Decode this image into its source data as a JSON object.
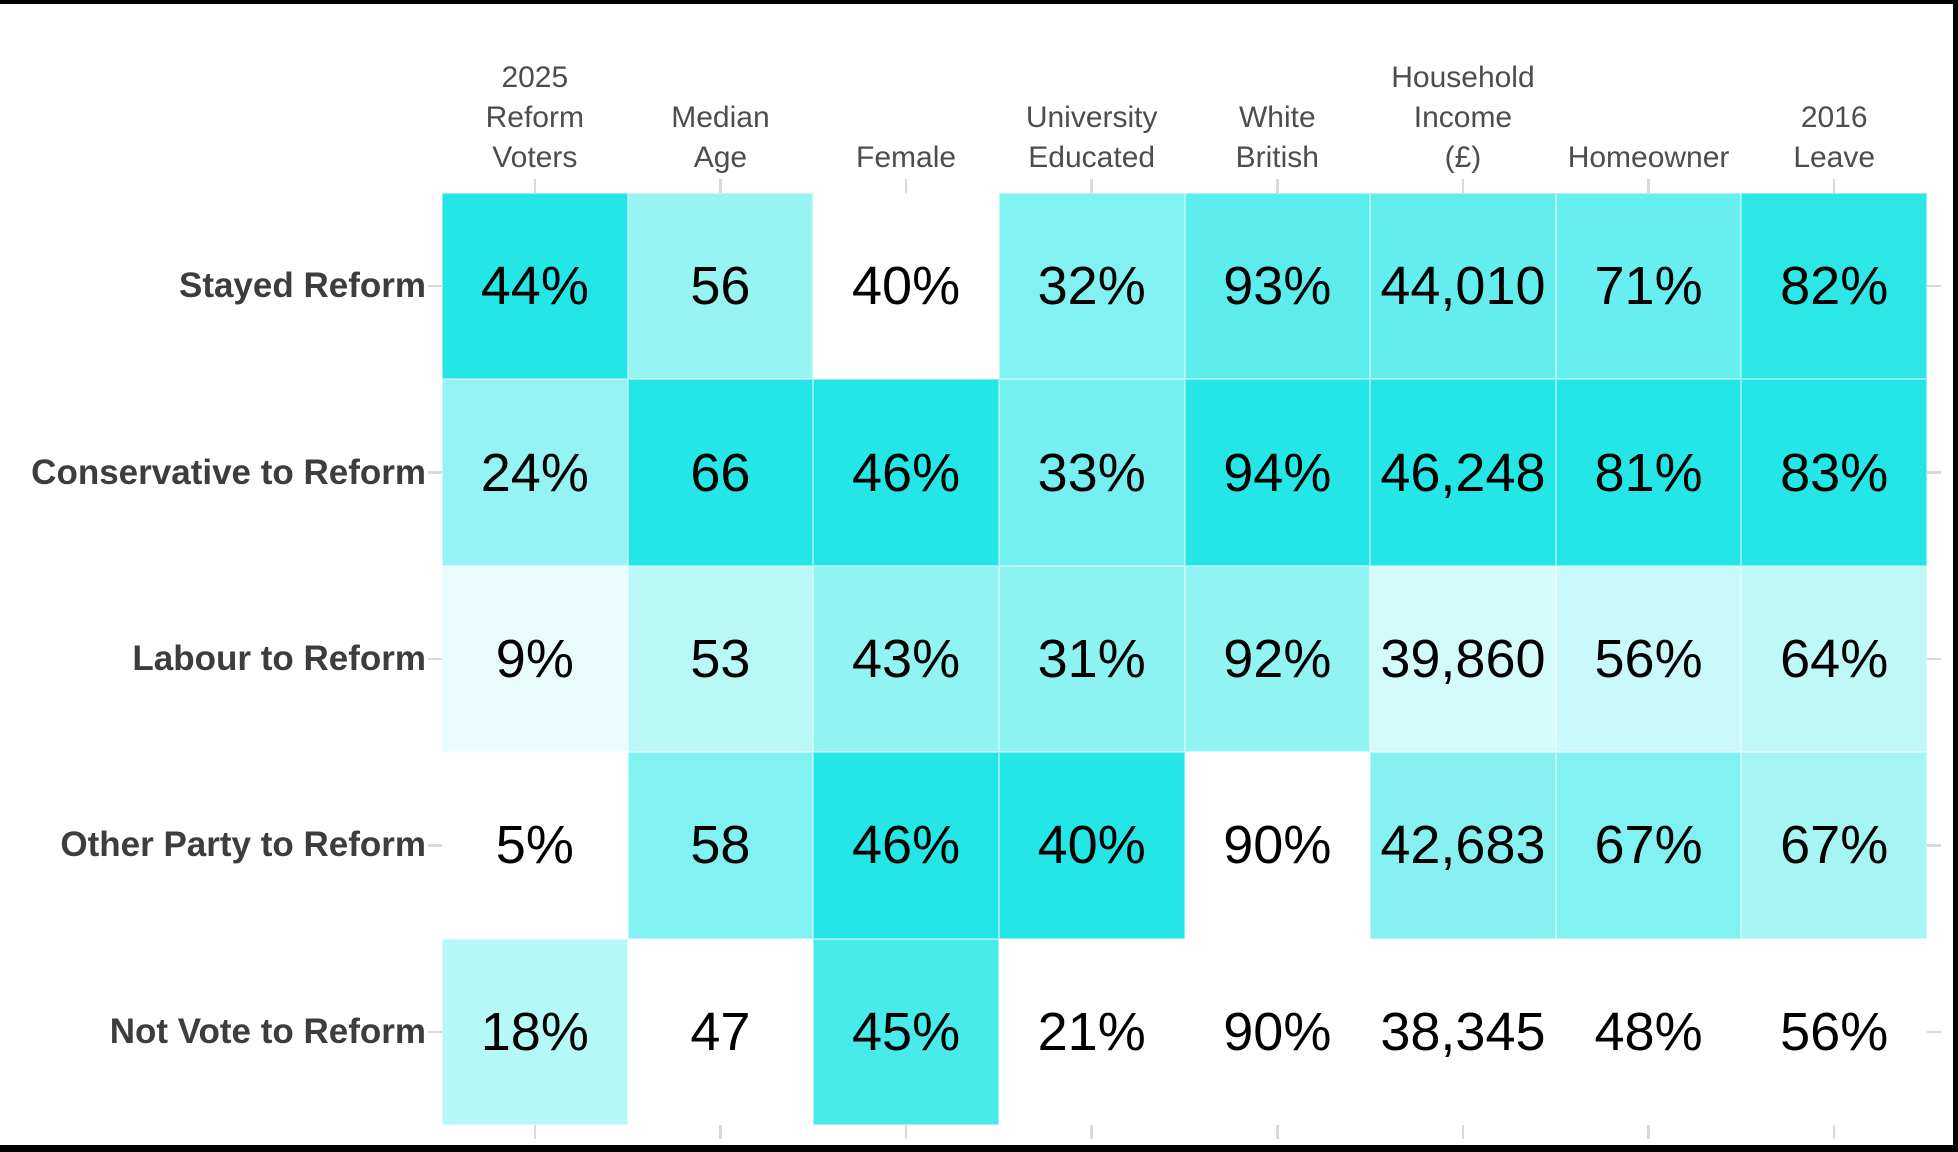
{
  "page": {
    "background": "#ffffff",
    "border_color": "#000000"
  },
  "chart_data": {
    "type": "heatmap",
    "title": "",
    "legend": "none",
    "grid": false,
    "normalization": "per-column min-max",
    "color_scale": {
      "min_color": "#ffffff",
      "max_color": "#25e6e6"
    },
    "style_colors": {
      "column_header_text": "#4d4d4d",
      "row_label_text": "#3d3d3d",
      "tick_mark": "#d9d9d9",
      "cell_text": "#000000"
    },
    "columns": [
      {
        "label": "2025 Reform Voters",
        "lines": [
          "2025",
          "Reform",
          "Voters"
        ]
      },
      {
        "label": "Median Age",
        "lines": [
          "Median",
          "Age"
        ]
      },
      {
        "label": "Female",
        "lines": [
          "Female"
        ]
      },
      {
        "label": "University Educated",
        "lines": [
          "University",
          "Educated"
        ]
      },
      {
        "label": "White British",
        "lines": [
          "White",
          "British"
        ]
      },
      {
        "label": "Household Income (£)",
        "lines": [
          "Household",
          "Income",
          "(£)"
        ]
      },
      {
        "label": "Homeowner",
        "lines": [
          "Homeowner"
        ]
      },
      {
        "label": "2016 Leave",
        "lines": [
          "2016",
          "Leave"
        ]
      }
    ],
    "rows": [
      {
        "label": "Stayed Reform",
        "display": [
          "44%",
          "56",
          "40%",
          "32%",
          "93%",
          "44,010",
          "71%",
          "82%"
        ],
        "values": [
          44,
          56,
          40,
          32,
          93,
          44010,
          71,
          82
        ]
      },
      {
        "label": "Conservative to Reform",
        "display": [
          "24%",
          "66",
          "46%",
          "33%",
          "94%",
          "46,248",
          "81%",
          "83%"
        ],
        "values": [
          24,
          66,
          46,
          33,
          94,
          46248,
          81,
          83
        ]
      },
      {
        "label": "Labour to Reform",
        "display": [
          "9%",
          "53",
          "43%",
          "31%",
          "92%",
          "39,860",
          "56%",
          "64%"
        ],
        "values": [
          9,
          53,
          43,
          31,
          92,
          39860,
          56,
          64
        ]
      },
      {
        "label": "Other Party to Reform",
        "display": [
          "5%",
          "58",
          "46%",
          "40%",
          "90%",
          "42,683",
          "67%",
          "67%"
        ],
        "values": [
          5,
          58,
          46,
          40,
          90,
          42683,
          67,
          67
        ]
      },
      {
        "label": "Not Vote to Reform",
        "display": [
          "18%",
          "47",
          "45%",
          "21%",
          "90%",
          "38,345",
          "48%",
          "56%"
        ],
        "values": [
          18,
          47,
          45,
          21,
          90,
          38345,
          48,
          56
        ]
      }
    ]
  }
}
